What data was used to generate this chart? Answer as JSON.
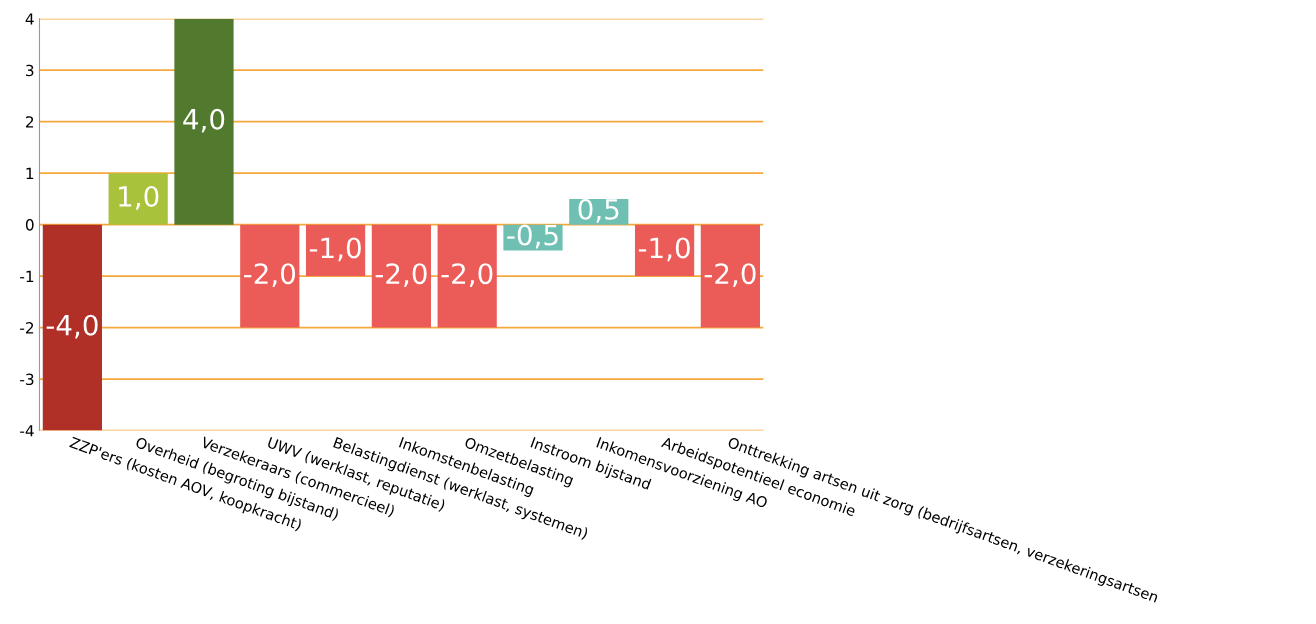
{
  "chart_data": {
    "type": "bar",
    "categories": [
      "ZZP'ers (kosten AOV, koopkracht)",
      "Overheid (begroting bijstand)",
      "Verzekeraars (commercieel)",
      "UWV (werklast, reputatie)",
      "Belastingdienst (werklast, systemen)",
      "Inkomstenbelasting",
      "Omzetbelasting",
      "Instroom bijstand",
      "Inkomensvoorziening AO",
      "Arbeidspotentieel economie",
      "Onttrekking artsen uit zorg (bedrijfsartsen, verzekeringsartsen"
    ],
    "values": [
      -4.0,
      1.0,
      4.0,
      -2.0,
      -1.0,
      -2.0,
      -2.0,
      -0.5,
      0.5,
      -1.0,
      -2.0
    ],
    "colors": [
      "#b03028",
      "#a8c23c",
      "#527a2e",
      "#eb5c58",
      "#eb5c58",
      "#eb5c58",
      "#eb5c58",
      "#6fc0b3",
      "#6fc0b3",
      "#eb5c58",
      "#eb5c58"
    ],
    "value_labels": [
      "-4,0",
      "1,0",
      "4,0",
      "-2,0",
      "-1,0",
      "-2,0",
      "-2,0",
      "-0,5",
      "0,5",
      "-1,0",
      "-2,0"
    ],
    "ylim": [
      -4,
      4
    ],
    "yticks": [
      -4,
      -3,
      -2,
      -1,
      0,
      1,
      2,
      3,
      4
    ],
    "grid": "y",
    "legend": false
  }
}
